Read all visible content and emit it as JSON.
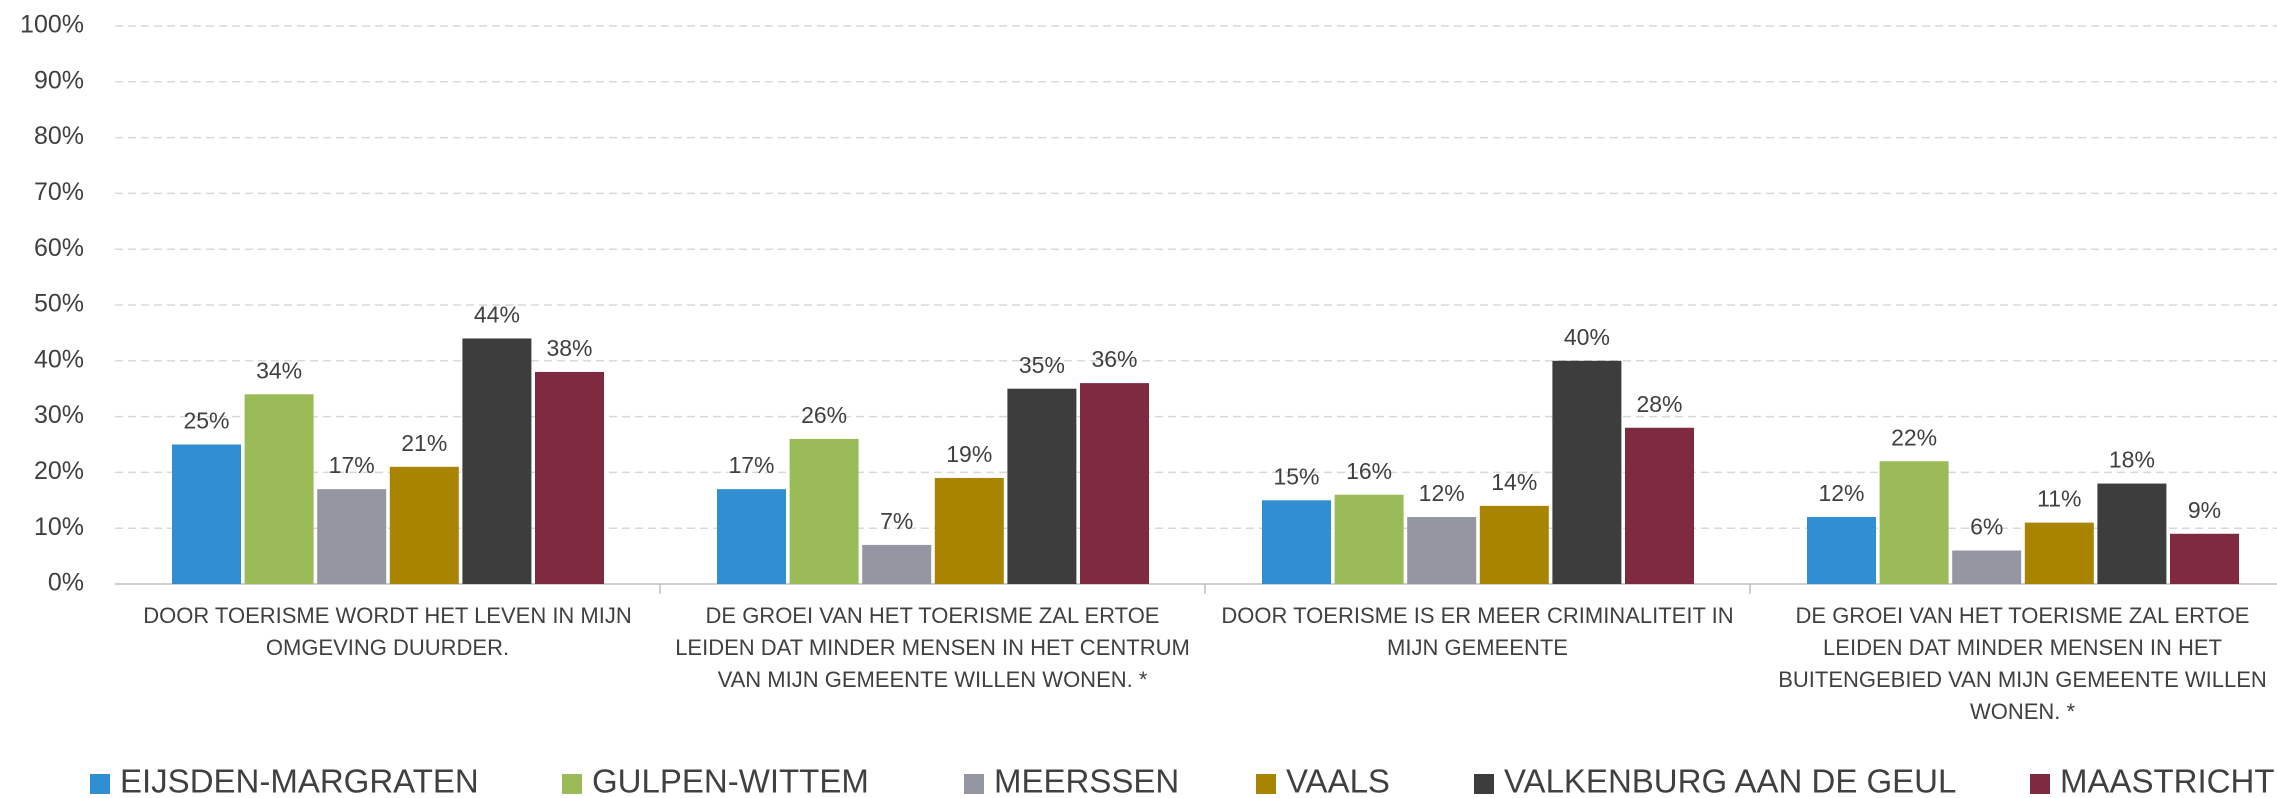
{
  "chart_data": {
    "type": "bar",
    "categories": [
      "DOOR TOERISME WORDT HET LEVEN IN MIJN OMGEVING DUURDER.",
      "DE GROEI VAN HET TOERISME ZAL ERTOE LEIDEN DAT MINDER MENSEN IN HET CENTRUM VAN MIJN GEMEENTE WILLEN WONEN. *",
      "DOOR TOERISME IS ER MEER CRIMINALITEIT IN MIJN GEMEENTE",
      "DE GROEI VAN HET TOERISME ZAL ERTOE LEIDEN DAT MINDER MENSEN IN HET BUITENGEBIED VAN MIJN GEMEENTE WILLEN WONEN. *"
    ],
    "series": [
      {
        "name": "EIJSDEN-MARGRATEN",
        "color": "#2f8fd1",
        "values": [
          25,
          17,
          15,
          12
        ],
        "value_labels": [
          "25%",
          "17%",
          "15%",
          "12%"
        ]
      },
      {
        "name": "GULPEN-WITTEM",
        "color": "#9bbb59",
        "values": [
          34,
          26,
          16,
          22
        ],
        "value_labels": [
          "34%",
          "26%",
          "16%",
          "22%"
        ]
      },
      {
        "name": "MEERSSEN",
        "color": "#9496a1",
        "values": [
          17,
          7,
          12,
          6
        ],
        "value_labels": [
          "17%",
          "7%",
          "12%",
          "6%"
        ]
      },
      {
        "name": "VAALS",
        "color": "#a98400",
        "values": [
          21,
          19,
          14,
          11
        ],
        "value_labels": [
          "21%",
          "19%",
          "14%",
          "11%"
        ]
      },
      {
        "name": "VALKENBURG AAN DE GEUL",
        "color": "#3d3d3d",
        "values": [
          44,
          35,
          40,
          18
        ],
        "value_labels": [
          "44%",
          "35%",
          "40%",
          "18%"
        ]
      },
      {
        "name": "MAASTRICHT",
        "color": "#7f2a40",
        "values": [
          38,
          36,
          28,
          9
        ],
        "value_labels": [
          "38%",
          "36%",
          "28%",
          "9%"
        ]
      }
    ],
    "ylim": [
      0,
      100
    ],
    "yticks": [
      {
        "value": 0,
        "label": "0%"
      },
      {
        "value": 10,
        "label": "10%"
      },
      {
        "value": 20,
        "label": "20%"
      },
      {
        "value": 30,
        "label": "30%"
      },
      {
        "value": 40,
        "label": "40%"
      },
      {
        "value": 50,
        "label": "50%"
      },
      {
        "value": 60,
        "label": "60%"
      },
      {
        "value": 70,
        "label": "70%"
      },
      {
        "value": 80,
        "label": "80%"
      },
      {
        "value": 90,
        "label": "90%"
      },
      {
        "value": 100,
        "label": "100%"
      }
    ],
    "grid": true,
    "legend": "bottom"
  }
}
